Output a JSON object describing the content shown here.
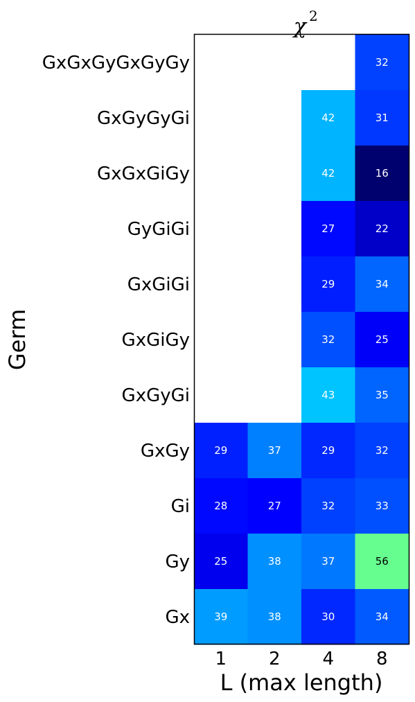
{
  "chart_data": {
    "type": "heatmap",
    "title": "χ",
    "title_superscript": "2",
    "xlabel": "L (max length)",
    "ylabel": "Germ",
    "x_categories": [
      "1",
      "2",
      "4",
      "8"
    ],
    "y_categories": [
      "GxGxGyGxGyGy",
      "GxGyGyGi",
      "GxGxGiGy",
      "GyGiGi",
      "GxGiGi",
      "GxGiGy",
      "GxGyGi",
      "GxGy",
      "Gi",
      "Gy",
      "Gx"
    ],
    "values": [
      [
        null,
        null,
        null,
        32
      ],
      [
        null,
        null,
        42,
        31
      ],
      [
        null,
        null,
        42,
        16
      ],
      [
        null,
        null,
        27,
        22
      ],
      [
        null,
        null,
        29,
        34
      ],
      [
        null,
        null,
        32,
        25
      ],
      [
        null,
        null,
        43,
        35
      ],
      [
        29,
        37,
        29,
        32
      ],
      [
        28,
        27,
        32,
        33
      ],
      [
        25,
        38,
        37,
        56
      ],
      [
        39,
        38,
        30,
        34
      ]
    ],
    "colors": [
      [
        null,
        null,
        null,
        "#0042ff"
      ],
      [
        null,
        null,
        "#00b4ff",
        "#0038ff"
      ],
      [
        null,
        null,
        "#00b4ff",
        "#00006e"
      ],
      [
        null,
        null,
        "#0008ff",
        "#0000c8"
      ],
      [
        null,
        null,
        "#001eff",
        "#0066ff"
      ],
      [
        null,
        null,
        "#0050ff",
        "#0000f8"
      ],
      [
        null,
        null,
        "#00c4ff",
        "#0064ff"
      ],
      [
        null,
        null,
        null,
        null
      ],
      [
        null,
        null,
        null,
        null
      ],
      [
        null,
        null,
        null,
        null
      ],
      [
        null,
        null,
        null,
        null
      ]
    ],
    "colors_bottom": [
      [
        "#0020ff",
        "#0080ff",
        "#0028ff",
        "#0040ff"
      ],
      [
        "#0008ff",
        "#0000ff",
        "#0040ff",
        "#0050ff"
      ],
      [
        "#0000ee",
        "#0090ff",
        "#0078ff",
        "#66ff8f"
      ],
      [
        "#009cff",
        "#0090ff",
        "#0028ff",
        "#005aff"
      ]
    ],
    "dark_text_cells": [
      [
        9,
        3
      ]
    ],
    "grid": false,
    "legend": "none"
  }
}
